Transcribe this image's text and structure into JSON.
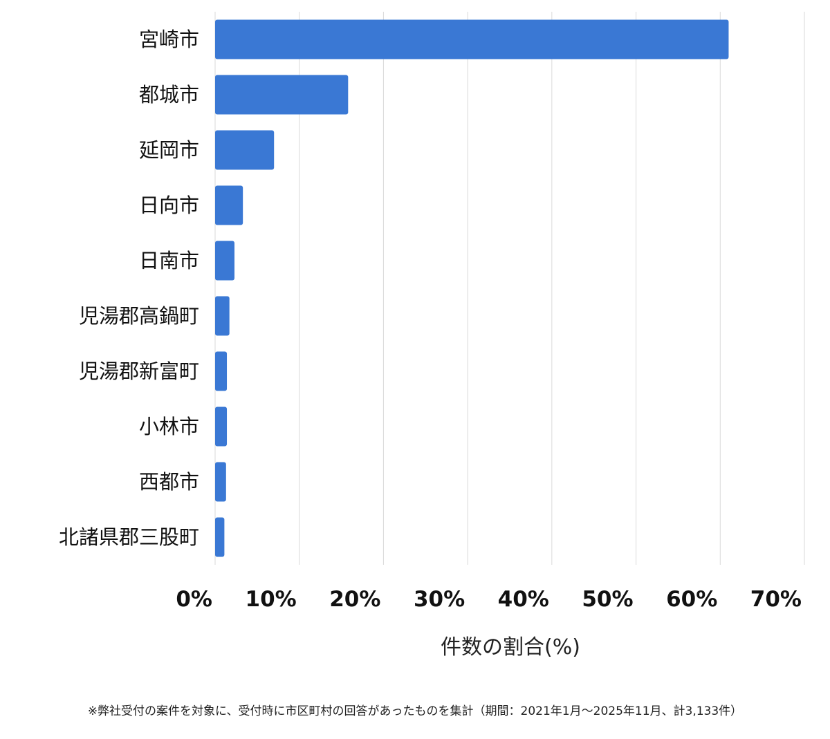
{
  "chart_data": {
    "type": "bar",
    "orientation": "horizontal",
    "categories": [
      "宮崎市",
      "都城市",
      "延岡市",
      "日向市",
      "日南市",
      "児湯郡高鍋町",
      "児湯郡新富町",
      "小林市",
      "西都市",
      "北諸県郡三股町"
    ],
    "values": [
      61.0,
      15.8,
      7.0,
      3.3,
      2.3,
      1.7,
      1.4,
      1.4,
      1.3,
      1.1
    ],
    "x_ticks": [
      "0%",
      "10%",
      "20%",
      "30%",
      "40%",
      "50%",
      "60%",
      "70%"
    ],
    "xlim": [
      0,
      70
    ],
    "xlabel": "件数の割合(%)",
    "grid": "vertical",
    "bar_color": "#3a78d4",
    "grid_color": "#d9d9d9"
  },
  "footnote": "※弊社受付の案件を対象に、受付時に市区町村の回答があったものを集計（期間：2021年1月～2025年11月、計3,133件）"
}
